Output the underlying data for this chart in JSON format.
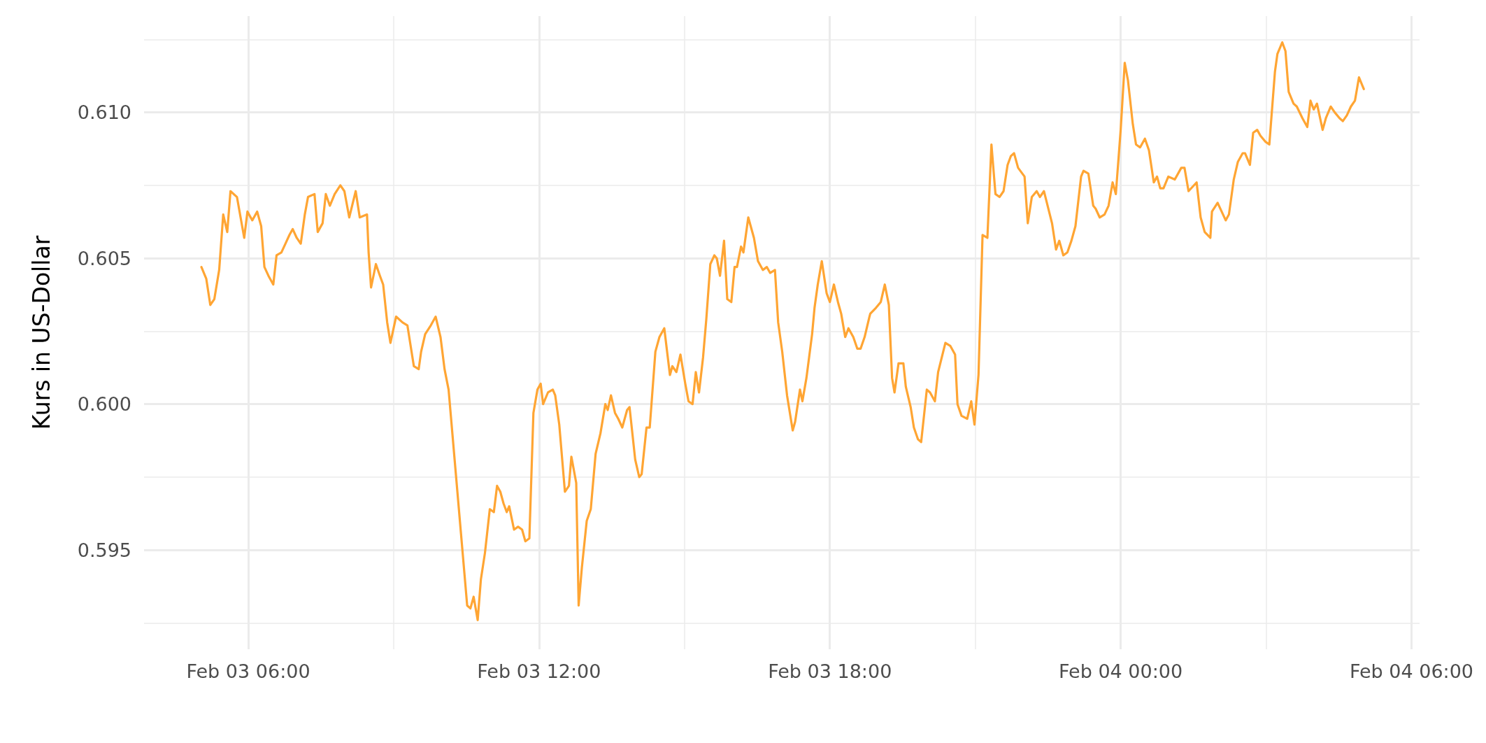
{
  "chart_data": {
    "type": "line",
    "ylabel": "Kurs in US-Dollar",
    "x": [
      "--02-03T05:02",
      "--02-03T05:08",
      "--02-03T05:13",
      "--02-03T05:18",
      "--02-03T05:24",
      "--02-03T05:29",
      "--02-03T05:34",
      "--02-03T05:38",
      "--02-03T05:46",
      "--02-03T05:55",
      "--02-03T05:59",
      "--02-03T06:05",
      "--02-03T06:11",
      "--02-03T06:16",
      "--02-03T06:20",
      "--02-03T06:25",
      "--02-03T06:31",
      "--02-03T06:35",
      "--02-03T06:41",
      "--02-03T06:46",
      "--02-03T06:51",
      "--02-03T06:55",
      "--02-03T07:00",
      "--02-03T07:05",
      "--02-03T07:10",
      "--02-03T07:14",
      "--02-03T07:22",
      "--02-03T07:26",
      "--02-03T07:32",
      "--02-03T07:36",
      "--02-03T07:41",
      "--02-03T07:47",
      "--02-03T07:54",
      "--02-03T07:59",
      "--02-03T08:05",
      "--02-03T08:13",
      "--02-03T08:18",
      "--02-03T08:27",
      "--02-03T08:29",
      "--02-03T08:32",
      "--02-03T08:38",
      "--02-03T08:43",
      "--02-03T08:47",
      "--02-03T08:52",
      "--02-03T08:56",
      "--02-03T09:03",
      "--02-03T09:11",
      "--02-03T09:17",
      "--02-03T09:25",
      "--02-03T09:31",
      "--02-03T09:34",
      "--02-03T09:39",
      "--02-03T09:46",
      "--02-03T09:52",
      "--02-03T09:58",
      "--02-03T10:03",
      "--02-03T10:08",
      "--02-03T10:31",
      "--02-03T10:35",
      "--02-03T10:39",
      "--02-03T10:44",
      "--02-03T10:48",
      "--02-03T10:53",
      "--02-03T10:59",
      "--02-03T11:04",
      "--02-03T11:08",
      "--02-03T11:12",
      "--02-03T11:16",
      "--02-03T11:20",
      "--02-03T11:23",
      "--02-03T11:29",
      "--02-03T11:34",
      "--02-03T11:39",
      "--02-03T11:43",
      "--02-03T11:48",
      "--02-03T11:53",
      "--02-03T11:58",
      "--02-03T12:02",
      "--02-03T12:05",
      "--02-03T12:11",
      "--02-03T12:17",
      "--02-03T12:20",
      "--02-03T12:25",
      "--02-03T12:32",
      "--02-03T12:37",
      "--02-03T12:40",
      "--02-03T12:46",
      "--02-03T12:49",
      "--02-03T12:53",
      "--02-03T12:59",
      "--02-03T13:04",
      "--02-03T13:10",
      "--02-03T13:16",
      "--02-03T13:22",
      "--02-03T13:25",
      "--02-03T13:29",
      "--02-03T13:34",
      "--02-03T13:38",
      "--02-03T13:43",
      "--02-03T13:49",
      "--02-03T13:52",
      "--02-03T13:59",
      "--02-03T14:04",
      "--02-03T14:07",
      "--02-03T14:13",
      "--02-03T14:17",
      "--02-03T14:24",
      "--02-03T14:29",
      "--02-03T14:35",
      "--02-03T14:42",
      "--02-03T14:45",
      "--02-03T14:50",
      "--02-03T14:55",
      "--02-03T15:01",
      "--02-03T15:05",
      "--02-03T15:10",
      "--02-03T15:14",
      "--02-03T15:18",
      "--02-03T15:23",
      "--02-03T15:27",
      "--02-03T15:32",
      "--02-03T15:37",
      "--02-03T15:40",
      "--02-03T15:44",
      "--02-03T15:49",
      "--02-03T15:53",
      "--02-03T15:58",
      "--02-03T16:02",
      "--02-03T16:05",
      "--02-03T16:10",
      "--02-03T16:13",
      "--02-03T16:19",
      "--02-03T16:26",
      "--02-03T16:31",
      "--02-03T16:37",
      "--02-03T16:42",
      "--02-03T16:46",
      "--02-03T16:52",
      "--02-03T16:56",
      "--02-03T17:01",
      "--02-03T17:07",
      "--02-03T17:14",
      "--02-03T17:17",
      "--02-03T17:23",
      "--02-03T17:26",
      "--02-03T17:31",
      "--02-03T17:38",
      "--02-03T17:41",
      "--02-03T17:45",
      "--02-03T17:50",
      "--02-03T17:56",
      "--02-03T18:00",
      "--02-03T18:05",
      "--02-03T18:10",
      "--02-03T18:14",
      "--02-03T18:19",
      "--02-03T18:23",
      "--02-03T18:29",
      "--02-03T18:34",
      "--02-03T18:38",
      "--02-03T18:43",
      "--02-03T18:49",
      "--02-03T18:50",
      "--02-03T18:57",
      "--02-03T19:03",
      "--02-03T19:08",
      "--02-03T19:13",
      "--02-03T19:17",
      "--02-03T19:20",
      "--02-03T19:25",
      "--02-03T19:31",
      "--02-03T19:34",
      "--02-03T19:40",
      "--02-03T19:44",
      "--02-03T19:49",
      "--02-03T19:53",
      "--02-03T20:00",
      "--02-03T20:04",
      "--02-03T20:10",
      "--02-03T20:14",
      "--02-03T20:23",
      "--02-03T20:29",
      "--02-03T20:35",
      "--02-03T20:38",
      "--02-03T20:43",
      "--02-03T20:50",
      "--02-03T20:55",
      "--02-03T20:59",
      "--02-03T21:04",
      "--02-03T21:09",
      "--02-03T21:15",
      "--02-03T21:20",
      "--02-03T21:25",
      "--02-03T21:30",
      "--02-03T21:35",
      "--02-03T21:40",
      "--02-03T21:44",
      "--02-03T21:48",
      "--02-03T21:53",
      "--02-03T22:01",
      "--02-03T22:05",
      "--02-03T22:10",
      "--02-03T22:16",
      "--02-03T22:20",
      "--02-03T22:25",
      "--02-03T22:35",
      "--02-03T22:40",
      "--02-03T22:44",
      "--02-03T22:49",
      "--02-03T22:54",
      "--02-03T22:59",
      "--02-03T23:04",
      "--02-03T23:11",
      "--02-03T23:14",
      "--02-03T23:20",
      "--02-03T23:26",
      "--02-03T23:29",
      "--02-03T23:34",
      "--02-03T23:40",
      "--02-03T23:45",
      "--02-03T23:50",
      "--02-03T23:54",
      "--02-04T00:00",
      "--02-04T00:05",
      "--02-04T00:09",
      "--02-04T00:15",
      "--02-04T00:19",
      "--02-04T00:24",
      "--02-04T00:30",
      "--02-04T00:35",
      "--02-04T00:41",
      "--02-04T00:45",
      "--02-04T00:49",
      "--02-04T00:53",
      "--02-04T00:59",
      "--02-04T01:07",
      "--02-04T01:15",
      "--02-04T01:19",
      "--02-04T01:24",
      "--02-04T01:34",
      "--02-04T01:39",
      "--02-04T01:44",
      "--02-04T01:51",
      "--02-04T01:53",
      "--02-04T02:00",
      "--02-04T02:05",
      "--02-04T02:10",
      "--02-04T02:14",
      "--02-04T02:20",
      "--02-04T02:25",
      "--02-04T02:31",
      "--02-04T02:34",
      "--02-04T02:40",
      "--02-04T02:44",
      "--02-04T02:49",
      "--02-04T02:53",
      "--02-04T02:59",
      "--02-04T03:04",
      "--02-04T03:11",
      "--02-04T03:14",
      "--02-04T03:20",
      "--02-04T03:24",
      "--02-04T03:28",
      "--02-04T03:34",
      "--02-04T03:38",
      "--02-04T03:45",
      "--02-04T03:51",
      "--02-04T03:55",
      "--02-04T03:59",
      "--02-04T04:03",
      "--02-04T04:10",
      "--02-04T04:14",
      "--02-04T04:20",
      "--02-04T04:25",
      "--02-04T04:31",
      "--02-04T04:35",
      "--02-04T04:40",
      "--02-04T04:45",
      "--02-04T04:50",
      "--02-04T04:55",
      "--02-04T05:01"
    ],
    "series": [
      {
        "color": "#ffa533",
        "values": [
          0.6047,
          0.6043,
          0.6034,
          0.6036,
          0.6046,
          0.6065,
          0.6059,
          0.6073,
          0.6071,
          0.6057,
          0.6066,
          0.6063,
          0.6066,
          0.6061,
          0.6047,
          0.6044,
          0.6041,
          0.6051,
          0.6052,
          0.6055,
          0.6058,
          0.606,
          0.6057,
          0.6055,
          0.6065,
          0.6071,
          0.6072,
          0.6059,
          0.6062,
          0.6072,
          0.6068,
          0.6072,
          0.6075,
          0.6073,
          0.6064,
          0.6073,
          0.6064,
          0.6065,
          0.6052,
          0.604,
          0.6048,
          0.6044,
          0.6041,
          0.6028,
          0.6021,
          0.603,
          0.6028,
          0.6027,
          0.6013,
          0.6012,
          0.6018,
          0.6024,
          0.6027,
          0.603,
          0.6023,
          0.6012,
          0.6005,
          0.5931,
          0.593,
          0.5934,
          0.5926,
          0.594,
          0.5949,
          0.5964,
          0.5963,
          0.5972,
          0.597,
          0.5966,
          0.5963,
          0.5965,
          0.5957,
          0.5958,
          0.5957,
          0.5953,
          0.5954,
          0.5997,
          0.6005,
          0.6007,
          0.6,
          0.6004,
          0.6005,
          0.6003,
          0.5993,
          0.597,
          0.5972,
          0.5982,
          0.5973,
          0.5931,
          0.5944,
          0.596,
          0.5964,
          0.5983,
          0.599,
          0.6,
          0.5998,
          0.6003,
          0.5997,
          0.5995,
          0.5992,
          0.5998,
          0.5999,
          0.5981,
          0.5975,
          0.5976,
          0.5992,
          0.5992,
          0.6018,
          0.6023,
          0.6026,
          0.601,
          0.6013,
          0.6011,
          0.6017,
          0.6007,
          0.6001,
          0.6,
          0.6011,
          0.6004,
          0.6016,
          0.6029,
          0.6048,
          0.6051,
          0.605,
          0.6044,
          0.6056,
          0.6036,
          0.6035,
          0.6047,
          0.6047,
          0.6054,
          0.6052,
          0.6064,
          0.6057,
          0.6049,
          0.6046,
          0.6047,
          0.6045,
          0.6046,
          0.6028,
          0.6018,
          0.6003,
          0.5991,
          0.5994,
          0.6005,
          0.6001,
          0.6009,
          0.6024,
          0.6033,
          0.6041,
          0.6049,
          0.6038,
          0.6035,
          0.6041,
          0.6035,
          0.6031,
          0.6023,
          0.6026,
          0.6023,
          0.6019,
          0.6019,
          0.6023,
          0.603,
          0.6031,
          0.6033,
          0.6035,
          0.6041,
          0.6034,
          0.6009,
          0.6004,
          0.6014,
          0.6014,
          0.6006,
          0.5999,
          0.5992,
          0.5988,
          0.5987,
          0.6005,
          0.6004,
          0.6001,
          0.6011,
          0.6021,
          0.602,
          0.6017,
          0.6,
          0.5996,
          0.5995,
          0.6001,
          0.5993,
          0.601,
          0.6058,
          0.6057,
          0.6089,
          0.6072,
          0.6071,
          0.6073,
          0.6082,
          0.6085,
          0.6086,
          0.6081,
          0.6078,
          0.6062,
          0.6071,
          0.6073,
          0.6071,
          0.6073,
          0.6062,
          0.6053,
          0.6056,
          0.6051,
          0.6052,
          0.6056,
          0.6061,
          0.6078,
          0.608,
          0.6079,
          0.6068,
          0.6067,
          0.6064,
          0.6065,
          0.6068,
          0.6076,
          0.6072,
          0.6094,
          0.6117,
          0.6111,
          0.6096,
          0.6089,
          0.6088,
          0.6091,
          0.6087,
          0.6076,
          0.6078,
          0.6074,
          0.6074,
          0.6078,
          0.6077,
          0.6081,
          0.6081,
          0.6073,
          0.6076,
          0.6064,
          0.6059,
          0.6057,
          0.6066,
          0.6069,
          0.6066,
          0.6063,
          0.6065,
          0.6077,
          0.6083,
          0.6086,
          0.6086,
          0.6082,
          0.6093,
          0.6094,
          0.6092,
          0.609,
          0.6089,
          0.6114,
          0.612,
          0.6124,
          0.6121,
          0.6107,
          0.6103,
          0.6102,
          0.6098,
          0.6095,
          0.6104,
          0.6101,
          0.6103,
          0.6094,
          0.6098,
          0.6102,
          0.61,
          0.6098,
          0.6097,
          0.6099,
          0.6102,
          0.6104,
          0.6112,
          0.6108
        ]
      }
    ],
    "xlim": [
      "--02-03T03:51",
      "--02-04T06:10"
    ],
    "xticks": [
      {
        "value": "--02-03T06:00",
        "label": "Feb 03 06:00"
      },
      {
        "value": "--02-03T09:00",
        "label": null
      },
      {
        "value": "--02-03T12:00",
        "label": "Feb 03 12:00"
      },
      {
        "value": "--02-03T15:00",
        "label": null
      },
      {
        "value": "--02-03T18:00",
        "label": "Feb 03 18:00"
      },
      {
        "value": "--02-03T21:00",
        "label": null
      },
      {
        "value": "--02-04T00:00",
        "label": "Feb 04 00:00"
      },
      {
        "value": "--02-04T03:00",
        "label": null
      },
      {
        "value": "--02-04T06:00",
        "label": "Feb 04 06:00"
      }
    ],
    "ylim": [
      0.5916,
      0.6133
    ],
    "yticks": [
      {
        "value": 0.5925,
        "label": null
      },
      {
        "value": 0.595,
        "label": "0.595"
      },
      {
        "value": 0.5975,
        "label": null
      },
      {
        "value": 0.6,
        "label": "0.600"
      },
      {
        "value": 0.6025,
        "label": null
      },
      {
        "value": 0.605,
        "label": "0.605"
      },
      {
        "value": 0.6075,
        "label": null
      },
      {
        "value": 0.61,
        "label": "0.610"
      },
      {
        "value": 0.6125,
        "label": null
      }
    ],
    "grid": true,
    "marker": "none",
    "line_style": "solid"
  }
}
